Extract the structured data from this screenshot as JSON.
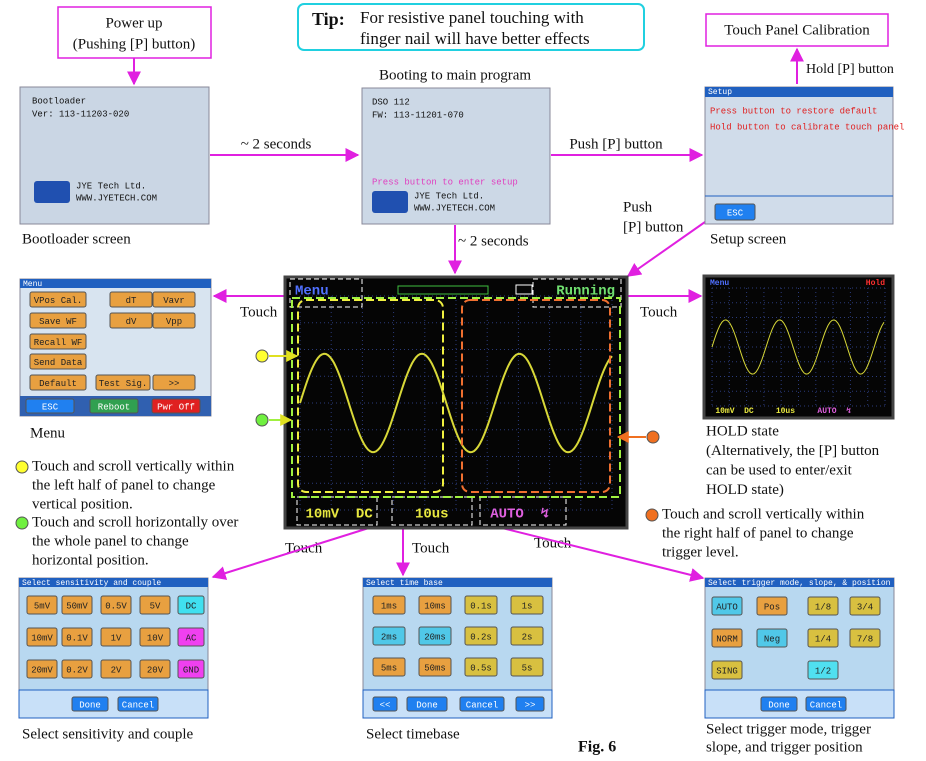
{
  "tip": {
    "label": "Tip:",
    "lines": [
      "For resistive panel touching with",
      "finger nail will have better effects"
    ]
  },
  "power_up": [
    "Power up",
    "(Pushing [P] button)"
  ],
  "calibration": "Touch Panel Calibration",
  "hold_p": "Hold [P] button",
  "booting": "Booting to main program",
  "delay_1": "~ 2 seconds",
  "delay_2": "~ 2 seconds",
  "push_p": "Push [P] button",
  "push_p2": [
    "Push",
    "[P] button"
  ],
  "touch": [
    "Touch",
    "Touch",
    "Touch",
    "Touch",
    "Touch"
  ],
  "captions": {
    "bootloader": "Bootloader screen",
    "setup": "Setup screen",
    "menu": "Menu",
    "hold": [
      "HOLD state",
      "(Alternatively, the [P] button",
      "can be used to enter/exit",
      "HOLD state)"
    ],
    "sensitivity": "Select sensitivity and couple",
    "timebase": "Select timebase",
    "trigger": [
      "Select trigger mode, trigger",
      "slope, and trigger position"
    ]
  },
  "notes": {
    "yellow": [
      "Touch and scroll vertically within",
      "the left half of panel to change",
      "vertical position."
    ],
    "green": [
      "Touch and scroll horizontally over",
      "the whole panel to change",
      "horizontal position."
    ],
    "orange": [
      "Touch and scroll vertically within",
      "the right half of panel to change",
      "trigger level."
    ]
  },
  "figure": "Fig. 6",
  "screens": {
    "bootloader": {
      "lines": [
        "Bootloader",
        "Ver: 113-11203-020"
      ],
      "logo": [
        "JYE Tech Ltd.",
        "WWW.JYETECH.COM"
      ]
    },
    "boot": {
      "lines": [
        "DSO 112",
        "FW: 113-11201-070"
      ],
      "prompt": "Press button to enter setup",
      "logo": [
        "JYE Tech Ltd.",
        "WWW.JYETECH.COM"
      ]
    },
    "setup": {
      "title": "Setup",
      "lines": [
        "Press button to restore default",
        "Hold button to calibrate touch panel"
      ],
      "button": "ESC"
    },
    "menu": {
      "title": "Menu",
      "buttons": [
        "VPos Cal.",
        "dT",
        "Vavr",
        "Save WF",
        "dV",
        "Vpp",
        "Recall WF",
        "Send Data",
        "Default",
        "Test Sig.",
        ">>"
      ],
      "bottom": [
        "ESC",
        "Reboot",
        "Pwr Off"
      ]
    },
    "main": {
      "menu": "Menu",
      "state": "Running",
      "volts": "10mV  DC",
      "time": "10us",
      "trigger": "AUTO  ↯"
    },
    "hold": {
      "menu": "Menu",
      "state": "Hold",
      "volts": "10mV  DC",
      "time": "10us",
      "trigger": "AUTO  ↯"
    },
    "sensitivity": {
      "title": "Select sensitivity and couple",
      "buttons": [
        "5mV",
        "50mV",
        "0.5V",
        "5V",
        "DC",
        "10mV",
        "0.1V",
        "1V",
        "10V",
        "AC",
        "20mV",
        "0.2V",
        "2V",
        "20V",
        "GND"
      ],
      "bottom": [
        "Done",
        "Cancel"
      ]
    },
    "timebase": {
      "title": "Select time base",
      "buttons": [
        "1ms",
        "10ms",
        "0.1s",
        "1s",
        "2ms",
        "20ms",
        "0.2s",
        "2s",
        "5ms",
        "50ms",
        "0.5s",
        "5s"
      ],
      "bottom": [
        "<<",
        "Done",
        "Cancel",
        ">>"
      ]
    },
    "trigger": {
      "title": "Select trigger mode, slope, & position",
      "buttons": [
        "AUTO",
        "Pos",
        "1/8",
        "3/4",
        "NORM",
        "Neg",
        "1/4",
        "7/8",
        "SING",
        "1/2"
      ],
      "bottom": [
        "Done",
        "Cancel"
      ]
    }
  }
}
